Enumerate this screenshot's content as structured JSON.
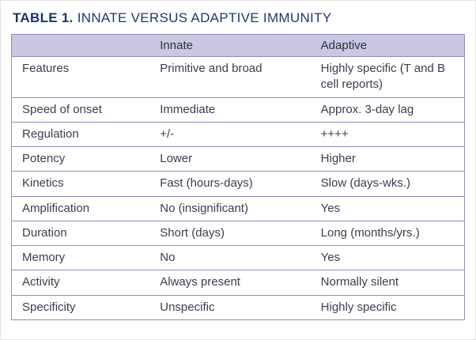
{
  "title": {
    "label": "TABLE 1.",
    "text": "INNATE VERSUS ADAPTIVE IMMUNITY"
  },
  "colors": {
    "title_navy": "#1c3a6d",
    "header_bg": "#c9c7e2",
    "grid_line": "#8f8dbe",
    "body_text": "#3c3c50"
  },
  "table": {
    "columns": [
      "",
      "Innate",
      "Adaptive"
    ],
    "rows": [
      [
        "Features",
        "Primitive and broad",
        "Highly specific (T and B cell reports)"
      ],
      [
        "Speed of onset",
        "Immediate",
        "Approx. 3-day lag"
      ],
      [
        "Regulation",
        "+/-",
        "++++"
      ],
      [
        "Potency",
        "Lower",
        "Higher"
      ],
      [
        "Kinetics",
        "Fast (hours-days)",
        "Slow (days-wks.)"
      ],
      [
        "Amplification",
        "No (insignificant)",
        "Yes"
      ],
      [
        "Duration",
        "Short (days)",
        "Long (months/yrs.)"
      ],
      [
        "Memory",
        "No",
        "Yes"
      ],
      [
        "Activity",
        "Always present",
        "Normally silent"
      ],
      [
        "Specificity",
        "Unspecific",
        "Highly specific"
      ]
    ]
  }
}
